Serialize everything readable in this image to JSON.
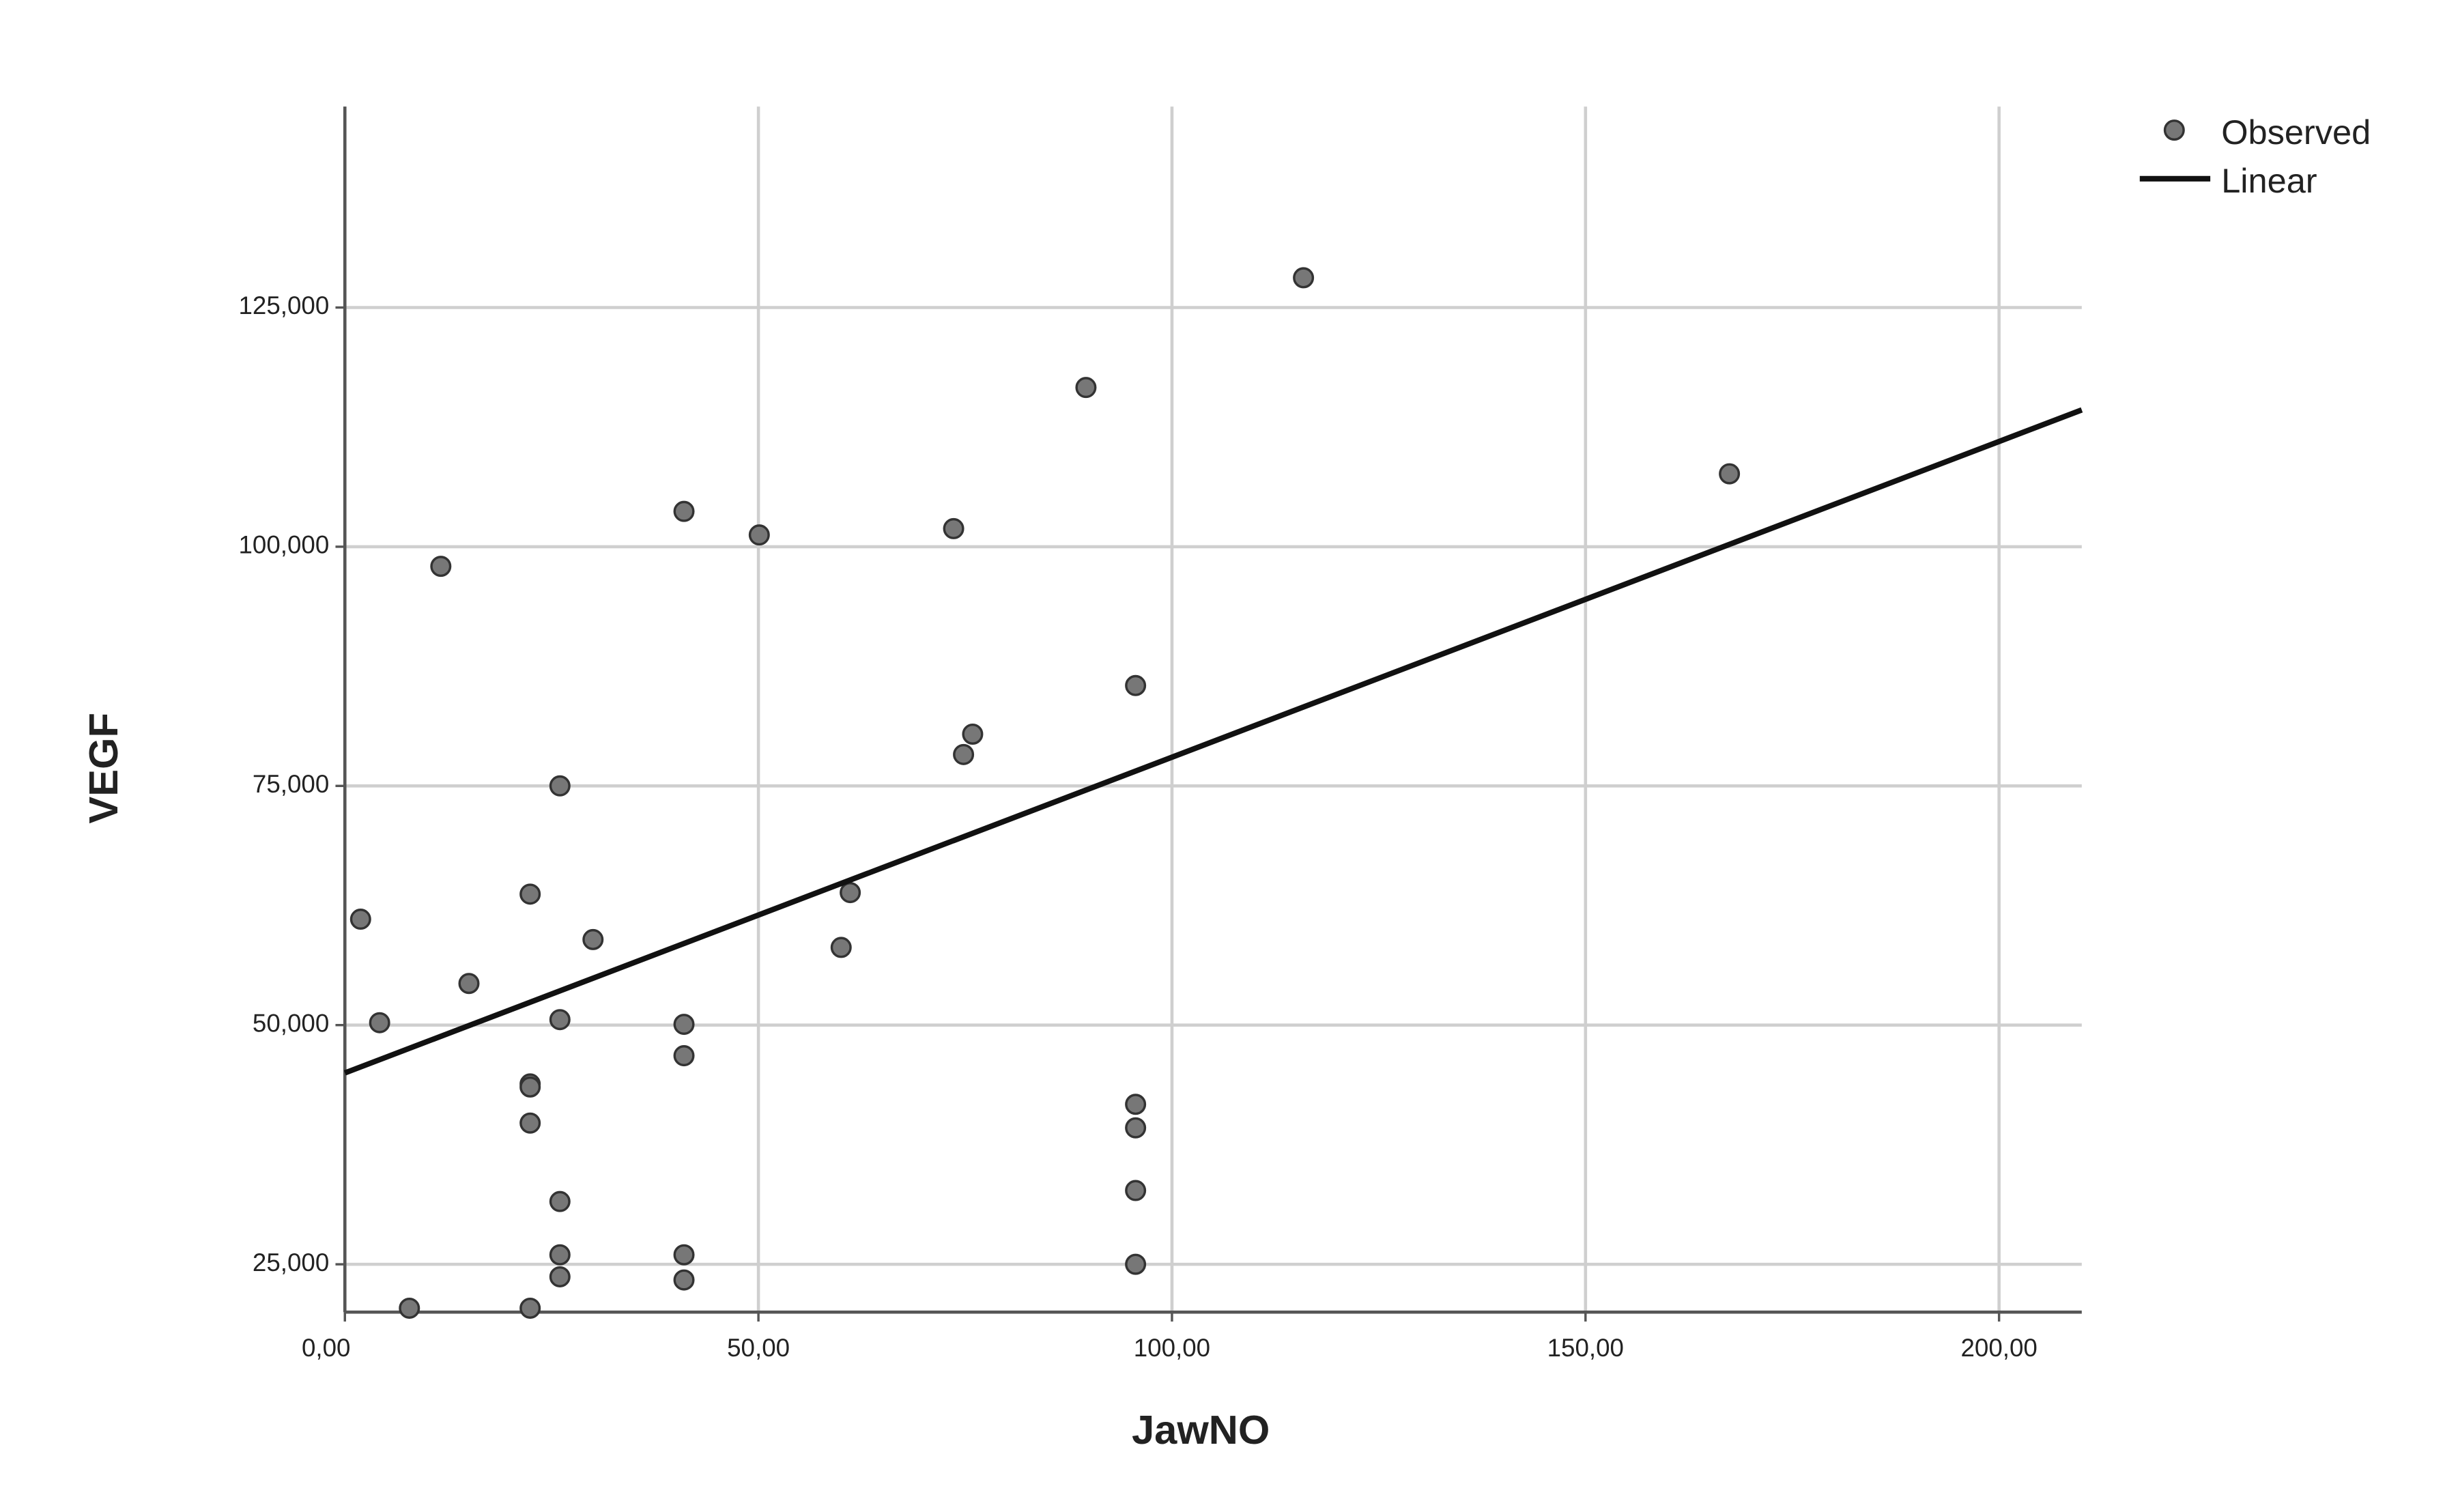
{
  "chart_data": {
    "type": "scatter",
    "x_label": "JawNO",
    "y_label": "VEGF",
    "xlim": [
      0,
      210
    ],
    "ylim": [
      20000,
      146000
    ],
    "xticks": [
      {
        "value": 0,
        "label": "0,00"
      },
      {
        "value": 50,
        "label": "50,00"
      },
      {
        "value": 100,
        "label": "100,00"
      },
      {
        "value": 150,
        "label": "150,00"
      },
      {
        "value": 200,
        "label": "200,00"
      }
    ],
    "yticks": [
      {
        "value": 25000,
        "label": "25,000"
      },
      {
        "value": 50000,
        "label": "50,000"
      },
      {
        "value": 75000,
        "label": "75,000"
      },
      {
        "value": 100000,
        "label": "100,000"
      },
      {
        "value": 125000,
        "label": "125,000"
      }
    ],
    "grid": true,
    "legend": "top-right",
    "series": [
      {
        "name": "Observed",
        "color": "#777777",
        "x": [
          1.9,
          4.2,
          11.6,
          15.0,
          7.8,
          22.4,
          22.4,
          22.4,
          22.4,
          22.4,
          26.0,
          26.0,
          26.0,
          26.0,
          26.0,
          30.0,
          41.0,
          41.0,
          41.0,
          41.0,
          41.0,
          50.1,
          60.0,
          61.1,
          73.6,
          74.8,
          75.9,
          89.6,
          95.6,
          95.6,
          95.6,
          95.6,
          95.6,
          115.9,
          167.4
        ],
        "values": [
          61070,
          50250,
          97950,
          54350,
          20410,
          20410,
          63690,
          43850,
          43530,
          39760,
          75000,
          50570,
          31560,
          25990,
          23690,
          58940,
          103690,
          50080,
          46800,
          25990,
          23360,
          101230,
          58120,
          63850,
          101890,
          78280,
          80410,
          116640,
          85490,
          41720,
          39260,
          32710,
          25000,
          128110,
          107620
        ]
      },
      {
        "name": "Linear",
        "color": "#111111",
        "x": [
          0,
          210
        ],
        "values": [
          45000,
          114300
        ]
      }
    ]
  }
}
